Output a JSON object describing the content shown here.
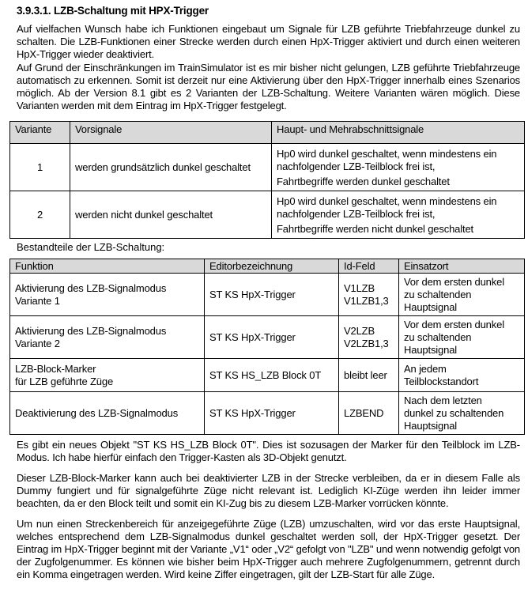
{
  "heading": "3.9.3.1. LZB-Schaltung mit HPX-Trigger",
  "paragraphs_top": [
    "Auf vielfachen Wunsch habe ich Funktionen eingebaut um Signale für LZB geführte Triebfahrzeuge dunkel zu schalten. Die LZB-Funktionen einer Strecke werden durch einen HpX-Trigger aktiviert und durch einen weiteren HpX-Trigger wieder deaktiviert.",
    "Auf Grund der Einschränkungen im TrainSimulator ist es mir bisher nicht gelungen, LZB geführte Triebfahrzeuge automatisch zu erkennen. Somit ist derzeit nur eine Aktivierung über den HpX-Trigger innerhalb eines Szenarios möglich. Ab der Version 8.1 gibt es 2 Varianten der LZB-Schaltung. Weitere Varianten wären möglich. Diese Varianten werden mit dem Eintrag im HpX-Trigger festgelegt."
  ],
  "variants_table": {
    "headers": [
      "Variante",
      "Vorsignale",
      "Haupt- und Mehrabschnittsignale"
    ],
    "rows": [
      {
        "variante": "1",
        "vorsignale": "werden grundsätzlich dunkel geschaltet",
        "haupt_1": "Hp0 wird dunkel geschaltet, wenn mindestens ein nachfolgender LZB-Teilblock frei ist,",
        "haupt_2": "Fahrtbegriffe werden dunkel geschaltet"
      },
      {
        "variante": "2",
        "vorsignale": "werden nicht dunkel geschaltet",
        "haupt_1": "Hp0 wird dunkel geschaltet, wenn mindestens ein nachfolgender LZB-Teilblock frei ist,",
        "haupt_2": "Fahrtbegriffe werden nicht dunkel geschaltet"
      }
    ]
  },
  "components_label": "Bestandteile der LZB-Schaltung:",
  "components_table": {
    "headers": [
      "Funktion",
      "Editorbezeichnung",
      "Id-Feld",
      "Einsatzort"
    ],
    "rows": [
      {
        "funktion": [
          "Aktivierung des LZB-Signalmodus",
          "Variante 1"
        ],
        "editor": "ST KS HpX-Trigger",
        "id": [
          "V1LZB",
          "V1LZB1,3"
        ],
        "ort": [
          "Vor dem ersten dunkel",
          "zu schaltenden",
          "Hauptsignal"
        ]
      },
      {
        "funktion": [
          "Aktivierung des LZB-Signalmodus",
          "Variante 2"
        ],
        "editor": "ST KS HpX-Trigger",
        "id": [
          "V2LZB",
          "V2LZB1,3"
        ],
        "ort": [
          "Vor dem ersten dunkel",
          "zu schaltenden",
          "Hauptsignal"
        ]
      },
      {
        "funktion": [
          "LZB-Block-Marker",
          "für LZB geführte Züge"
        ],
        "editor": "ST KS HS_LZB Block 0T",
        "id": [
          "bleibt leer"
        ],
        "ort": [
          "An jedem",
          "Teilblockstandort"
        ]
      },
      {
        "funktion": [
          "Deaktivierung des LZB-Signalmodus"
        ],
        "editor": "ST KS HpX-Trigger",
        "id": [
          "LZBEND"
        ],
        "ort": [
          "Nach dem letzten",
          "dunkel zu schaltenden",
          "Hauptsignal"
        ]
      }
    ]
  },
  "paragraphs_bottom": [
    "Es gibt ein neues Objekt \"ST KS HS_LZB Block 0T\". Dies ist sozusagen der Marker für den Teilblock im LZB-Modus. Ich habe hierfür einfach den Trigger-Kasten als 3D-Objekt genutzt.",
    "Dieser LZB-Block-Marker kann auch bei deaktivierter LZB in der Strecke verbleiben, da er in diesem Falle als Dummy fungiert und für signalgeführte Züge nicht relevant ist. Lediglich KI-Züge werden ihn leider immer beachten, da er den Block teilt und somit ein KI-Zug bis zu diesem LZB-Marker vorrücken könnte.",
    "Um nun einen Streckenbereich für anzeigegeführte Züge (LZB) umzuschalten, wird vor das erste Hauptsignal, welches entsprechend dem LZB-Signalmodus dunkel geschaltet werden soll, der HpX-Trigger gesetzt. Der Eintrag im HpX-Trigger beginnt mit der Variante „V1“ oder „V2“ gefolgt von \"LZB\" und wenn notwendig gefolgt von der Zugfolgenummer. Es können wie bisher beim HpX-Trigger auch mehrere Zugfolgenummern, getrennt durch ein Komma eingetragen werden. Wird keine Ziffer eingetragen, gilt der LZB-Start für alle Züge."
  ]
}
